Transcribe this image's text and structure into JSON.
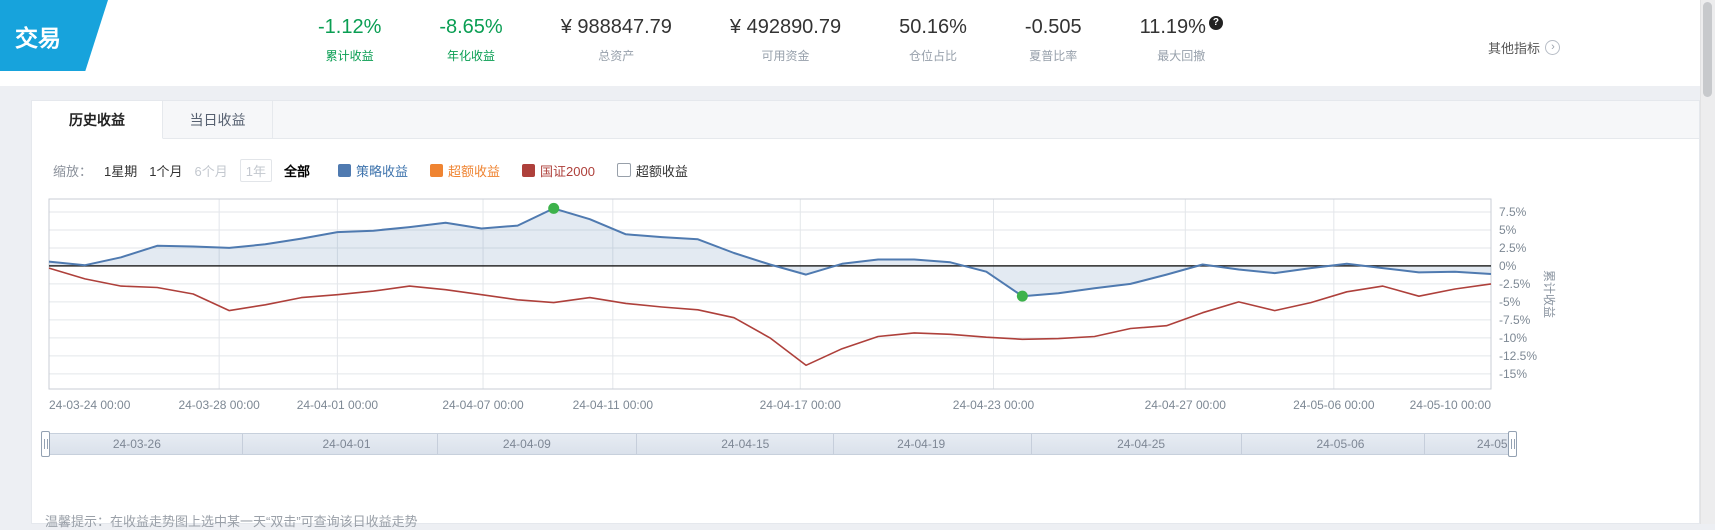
{
  "header": {
    "product_tab": "交易",
    "stats": [
      {
        "value": "-1.12%",
        "label": "累计收益",
        "color": "green"
      },
      {
        "value": "-8.65%",
        "label": "年化收益",
        "color": "green"
      },
      {
        "value": "¥ 988847.79",
        "label": "总资产",
        "color": "dark"
      },
      {
        "value": "¥ 492890.79",
        "label": "可用资金",
        "color": "dark"
      },
      {
        "value": "50.16%",
        "label": "仓位占比",
        "color": "dark"
      },
      {
        "value": "-0.505",
        "label": "夏普比率",
        "color": "dark"
      },
      {
        "value": "11.19%",
        "label": "最大回撤",
        "color": "dark",
        "help": "?"
      }
    ],
    "more_link": "其他指标",
    "more_chevron": "›"
  },
  "tabs": [
    {
      "label": "历史收益",
      "active": true
    },
    {
      "label": "当日收益",
      "active": false
    }
  ],
  "controls": {
    "zoom_label": "缩放：",
    "ranges": [
      {
        "label": "1星期",
        "state": "normal"
      },
      {
        "label": "1个月",
        "state": "normal"
      },
      {
        "label": "6个月",
        "state": "muted"
      },
      {
        "label": "1年",
        "state": "muted-boxed"
      },
      {
        "label": "全部",
        "state": "active"
      }
    ],
    "legend": [
      {
        "label": "策略收益",
        "type": "swatch",
        "color": "#4f7ab0"
      },
      {
        "label": "超额收益",
        "type": "swatch",
        "color": "#ef8432"
      },
      {
        "label": "国证2000",
        "type": "swatch",
        "color": "#ae403b"
      },
      {
        "label": "超额收益",
        "type": "checkbox",
        "checked": false
      }
    ]
  },
  "chart_data": {
    "type": "line",
    "title": "",
    "xlabel": "",
    "ylabel": "累计收益",
    "y_unit": "%",
    "ylim": [
      -17.1,
      9.3
    ],
    "y_ticks": [
      7.5,
      5,
      2.5,
      0,
      -2.5,
      -5,
      -7.5,
      -10,
      -12.5,
      -15
    ],
    "x_start": "24-03-24 00:00",
    "x_end": "24-05-10 00:00",
    "x_ticks": [
      {
        "label": "24-03-24 00:00",
        "f": 0.0
      },
      {
        "label": "24-03-28 00:00",
        "f": 0.118
      },
      {
        "label": "24-04-01 00:00",
        "f": 0.2
      },
      {
        "label": "24-04-07 00:00",
        "f": 0.301
      },
      {
        "label": "24-04-11 00:00",
        "f": 0.391
      },
      {
        "label": "24-04-17 00:00",
        "f": 0.521
      },
      {
        "label": "24-04-23 00:00",
        "f": 0.655
      },
      {
        "label": "24-04-27 00:00",
        "f": 0.788
      },
      {
        "label": "24-05-06 00:00",
        "f": 0.891
      },
      {
        "label": "24-05-10 00:00",
        "f": 1.0
      }
    ],
    "series": [
      {
        "name": "策略收益",
        "color": "#4f7ab0",
        "area": "rgba(79,122,176,0.16)",
        "values": [
          0.6,
          0.1,
          1.2,
          2.8,
          2.7,
          2.5,
          3.0,
          3.8,
          4.7,
          4.9,
          5.4,
          6.0,
          5.2,
          5.6,
          8.0,
          6.5,
          4.4,
          4.0,
          3.7,
          1.8,
          0.2,
          -1.2,
          0.3,
          0.9,
          0.9,
          0.5,
          -0.8,
          -4.2,
          -3.8,
          -3.1,
          -2.5,
          -1.2,
          0.2,
          -0.5,
          -1.0,
          -0.3,
          0.3,
          -0.3,
          -0.9,
          -0.8,
          -1.12
        ]
      },
      {
        "name": "国证2000",
        "color": "#ae403b",
        "values": [
          -0.3,
          -1.8,
          -2.8,
          -3.0,
          -3.9,
          -6.2,
          -5.4,
          -4.4,
          -4.0,
          -3.5,
          -2.8,
          -3.3,
          -4.0,
          -4.7,
          -5.1,
          -4.4,
          -5.2,
          -5.7,
          -6.1,
          -7.2,
          -10.0,
          -13.8,
          -11.5,
          -9.8,
          -9.3,
          -9.5,
          -9.9,
          -10.2,
          -10.1,
          -9.8,
          -8.7,
          -8.3,
          -6.5,
          -5.0,
          -6.2,
          -5.1,
          -3.6,
          -2.8,
          -4.2,
          -3.2,
          -2.5
        ]
      }
    ],
    "mark_points": [
      {
        "series": 0,
        "index": 14,
        "type": "max"
      },
      {
        "series": 0,
        "index": 27,
        "type": "min"
      }
    ],
    "colors": {
      "grid": "#e3e6ea",
      "border": "#c9ced6",
      "zero_line": "#2a2a2a",
      "mark": "#3db24b",
      "tick_label": "#7d8894",
      "axis_name": "#8b95a1"
    }
  },
  "slider": {
    "labels": [
      {
        "text": "24-03-26",
        "f": 0.062
      },
      {
        "text": "24-04-01",
        "f": 0.205
      },
      {
        "text": "24-04-09",
        "f": 0.328
      },
      {
        "text": "24-04-15",
        "f": 0.477
      },
      {
        "text": "24-04-19",
        "f": 0.597
      },
      {
        "text": "24-04-25",
        "f": 0.747
      },
      {
        "text": "24-05-06",
        "f": 0.883
      },
      {
        "text": "24-05",
        "f": 0.997,
        "align": "end"
      }
    ]
  },
  "footer_tip": "温馨提示：在收益走势图上选中某一天“双击”可查询该日收益走势"
}
